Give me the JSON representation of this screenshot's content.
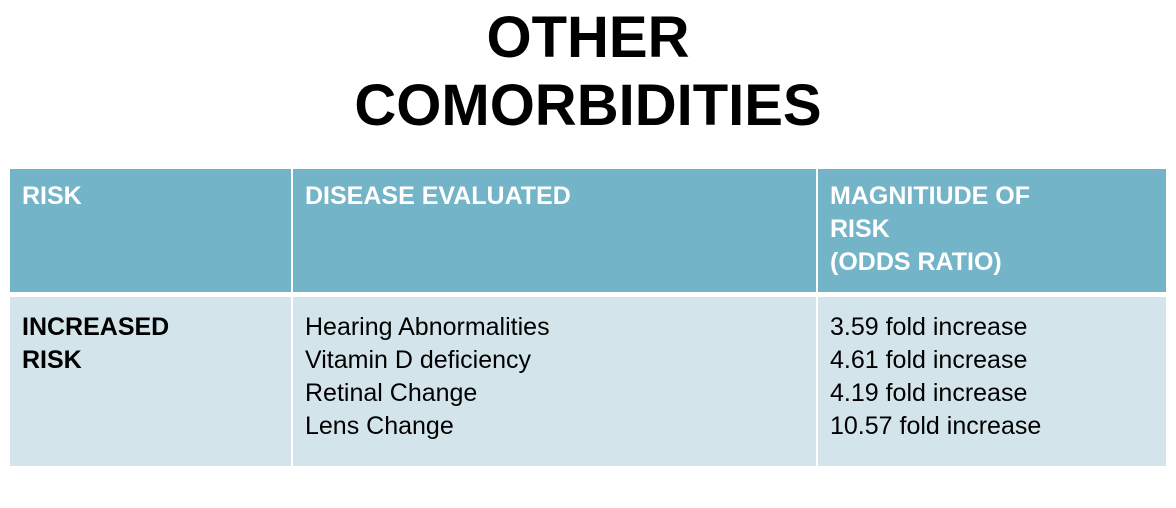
{
  "title": {
    "line1": "OTHER",
    "line2": "COMORBIDITIES"
  },
  "table": {
    "headers": {
      "risk": "RISK",
      "disease": "DISEASE EVALUATED",
      "magnitude_line1": "MAGNITIUDE OF",
      "magnitude_line2": "RISK",
      "magnitude_line3": "(ODDS RATIO)"
    },
    "rows": [
      {
        "risk_line1": "INCREASED",
        "risk_line2": "RISK",
        "diseases": [
          "Hearing Abnormalities",
          "Vitamin D deficiency",
          "Retinal Change",
          "Lens Change"
        ],
        "magnitudes": [
          "3.59 fold increase",
          "4.61 fold increase",
          "4.19 fold increase",
          "10.57 fold increase"
        ]
      }
    ]
  },
  "colors": {
    "header_bg": "#74b4c8",
    "body_bg": "#d3e5eb"
  }
}
